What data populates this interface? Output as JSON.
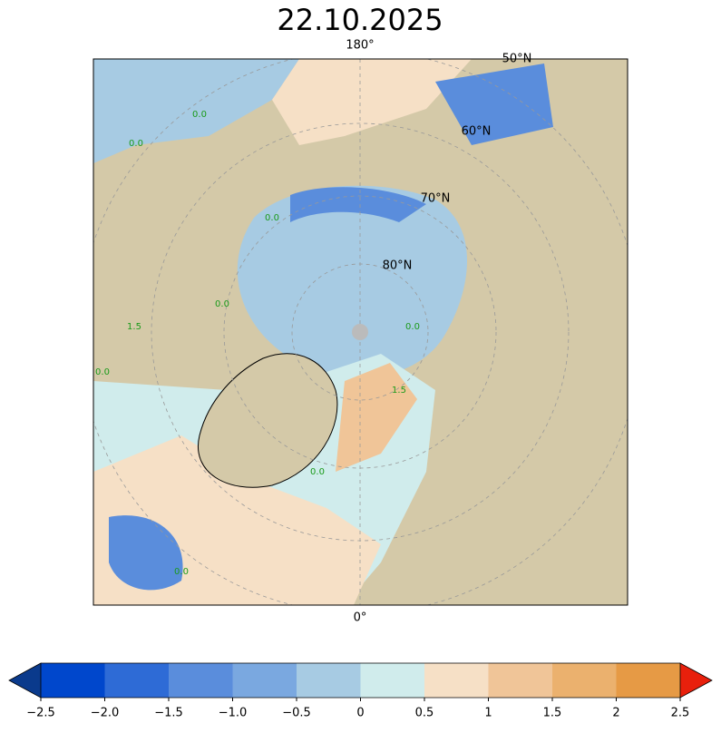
{
  "title": "22.10.2025",
  "map": {
    "meridian_labels": [
      "180°",
      "0°"
    ],
    "latitude_labels": [
      "50°N",
      "60°N",
      "70°N",
      "80°N"
    ],
    "contour_labels": [
      "0.0",
      "0.0",
      "0.0",
      "0.0",
      "1.5",
      "0.0",
      "0.0",
      "0.0",
      "1.5",
      "0.0"
    ]
  },
  "colorbar": {
    "ticks": [
      {
        "value": -2.5,
        "label": "−2.5"
      },
      {
        "value": -2.0,
        "label": "−2.0"
      },
      {
        "value": -1.5,
        "label": "−1.5"
      },
      {
        "value": -1.0,
        "label": "−1.0"
      },
      {
        "value": -0.5,
        "label": "−0.5"
      },
      0.0,
      0.5,
      1.0,
      1.5,
      2.0,
      2.5
    ],
    "colors": [
      "#0047cc",
      "#2e6bd6",
      "#5a8ddc",
      "#7aa8e0",
      "#a7cbe3",
      "#d0ecec",
      "#f6e0c6",
      "#f0c598",
      "#ebb16e",
      "#e69a45"
    ],
    "under_color": "#0a3a8c",
    "over_color": "#e8200c"
  }
}
